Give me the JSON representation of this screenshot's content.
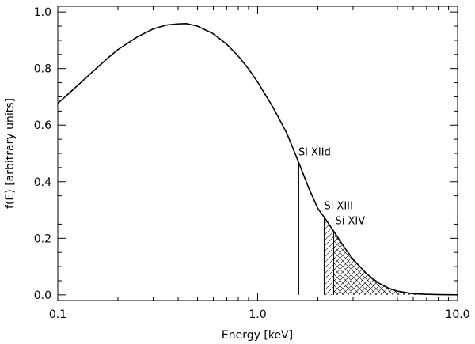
{
  "chart_data": {
    "type": "line",
    "xlabel": "Energy  [keV]",
    "ylabel": "f(E)  [arbitrary units]",
    "xscale": "log",
    "xlim": [
      0.1,
      10.0
    ],
    "ylim": [
      -0.02,
      1.02
    ],
    "xticks": [
      {
        "value": 0.1,
        "label": "0.1"
      },
      {
        "value": 1.0,
        "label": "1.0"
      },
      {
        "value": 10.0,
        "label": "10.0"
      }
    ],
    "yticks": [
      {
        "value": 0.0,
        "label": "0.0"
      },
      {
        "value": 0.2,
        "label": "0.2"
      },
      {
        "value": 0.4,
        "label": "0.4"
      },
      {
        "value": 0.6,
        "label": "0.6"
      },
      {
        "value": 0.8,
        "label": "0.8"
      },
      {
        "value": 1.0,
        "label": "1.0"
      }
    ],
    "grid": false,
    "curve": {
      "x": [
        0.1,
        0.12,
        0.15,
        0.18,
        0.2,
        0.25,
        0.3,
        0.35,
        0.4,
        0.44,
        0.5,
        0.6,
        0.7,
        0.8,
        0.9,
        1.0,
        1.2,
        1.4,
        1.6,
        1.8,
        2.0,
        2.15,
        2.4,
        2.7,
        3.0,
        3.5,
        4.0,
        4.5,
        5.0,
        6.0,
        7.0,
        8.0,
        9.0,
        10.0
      ],
      "y": [
        0.677,
        0.727,
        0.79,
        0.84,
        0.867,
        0.912,
        0.94,
        0.954,
        0.958,
        0.959,
        0.95,
        0.923,
        0.886,
        0.844,
        0.799,
        0.752,
        0.66,
        0.571,
        0.47,
        0.378,
        0.305,
        0.275,
        0.225,
        0.17,
        0.126,
        0.075,
        0.043,
        0.024,
        0.013,
        0.004,
        0.002,
        0.001,
        0.0005,
        0.0002
      ]
    },
    "thresholds": [
      {
        "label": "Si XIId",
        "energy": 1.6
      },
      {
        "label": "Si XIII",
        "energy": 2.15
      },
      {
        "label": "Si XIV",
        "energy": 2.4
      }
    ],
    "hatched_regions": [
      {
        "from": 2.15,
        "to": 10.0,
        "pattern": "diagonal"
      },
      {
        "from": 2.4,
        "to": 10.0,
        "pattern": "diagonal-reverse"
      }
    ]
  }
}
